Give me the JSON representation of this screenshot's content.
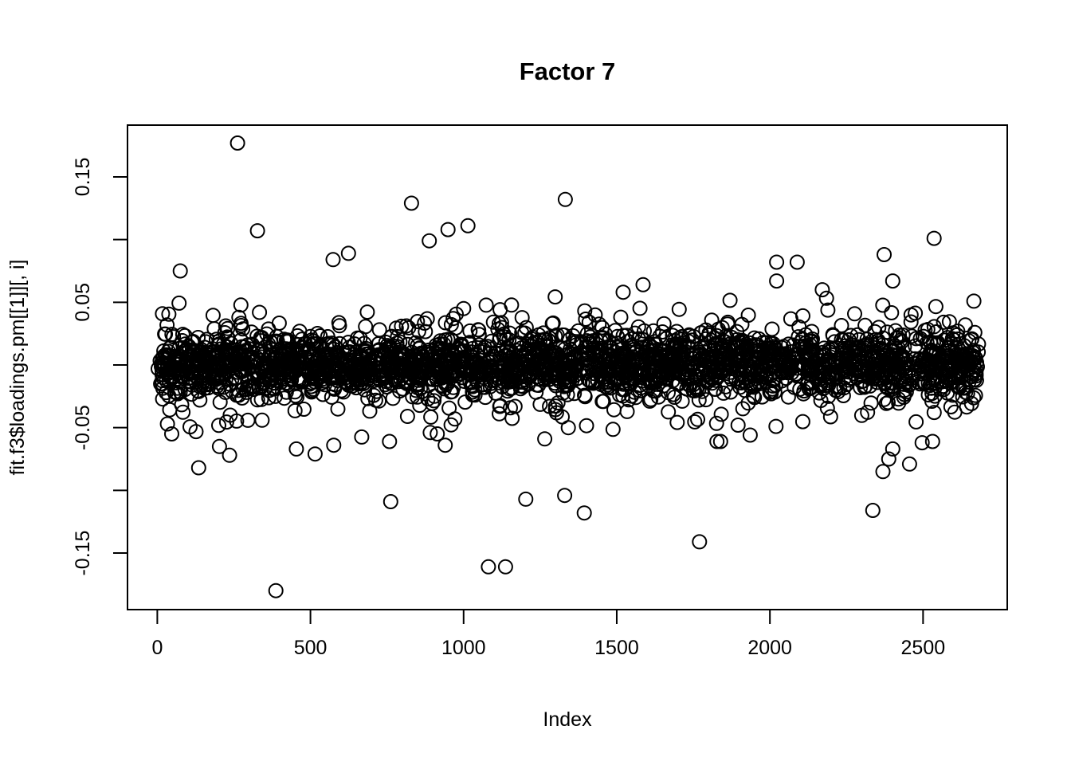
{
  "chart_data": {
    "type": "scatter",
    "title": "Factor 7",
    "xlabel": "Index",
    "ylabel": "fit.f3$loadings.pm[[1]][, i]",
    "n_points": 2681,
    "xlim": [
      0,
      2681
    ],
    "ylim": [
      -0.195,
      0.191
    ],
    "x_ticks": [
      0,
      500,
      1000,
      1500,
      2000,
      2500
    ],
    "y_ticks_labeled": [
      0.15,
      0.05,
      -0.05,
      -0.15
    ],
    "y_tick_labels": [
      "0.15",
      "0.05",
      "-0.05",
      "-0.15"
    ],
    "y_ticks_minor": [
      0.1,
      0.0,
      -0.1
    ],
    "grid": false,
    "legend": "none",
    "marker": {
      "shape": "open-circle",
      "radius_px": 8.5,
      "stroke_px": 2,
      "color": "#000000"
    },
    "background_color": "#ffffff",
    "band": {
      "description": "dense horizontal band of points centered on y=0",
      "n": 2631,
      "x_range": [
        1,
        2681
      ],
      "mixture": [
        {
          "weight": 0.76,
          "sd": 0.012
        },
        {
          "weight": 0.2,
          "sd": 0.021
        },
        {
          "weight": 0.04,
          "sd": 0.032
        }
      ],
      "clip": 0.062,
      "seed": 42
    },
    "outliers": [
      [
        262,
        0.177
      ],
      [
        327,
        0.107
      ],
      [
        830,
        0.129
      ],
      [
        1332,
        0.132
      ],
      [
        888,
        0.099
      ],
      [
        949,
        0.108
      ],
      [
        1014,
        0.111
      ],
      [
        2536,
        0.101
      ],
      [
        2373,
        0.088
      ],
      [
        2022,
        0.082
      ],
      [
        2089,
        0.082
      ],
      [
        75,
        0.075
      ],
      [
        574,
        0.084
      ],
      [
        624,
        0.089
      ],
      [
        1521,
        0.058
      ],
      [
        1586,
        0.064
      ],
      [
        2022,
        0.067
      ],
      [
        2401,
        0.067
      ],
      [
        2171,
        0.06
      ],
      [
        387,
        -0.18
      ],
      [
        1081,
        -0.161
      ],
      [
        1137,
        -0.161
      ],
      [
        1770,
        -0.141
      ],
      [
        1394,
        -0.118
      ],
      [
        2336,
        -0.116
      ],
      [
        762,
        -0.109
      ],
      [
        1203,
        -0.107
      ],
      [
        1330,
        -0.104
      ],
      [
        135,
        -0.082
      ],
      [
        2369,
        -0.085
      ],
      [
        2456,
        -0.079
      ],
      [
        2388,
        -0.075
      ],
      [
        236,
        -0.072
      ],
      [
        515,
        -0.071
      ],
      [
        454,
        -0.067
      ],
      [
        2401,
        -0.067
      ],
      [
        940,
        -0.064
      ],
      [
        576,
        -0.064
      ],
      [
        1827,
        -0.061
      ],
      [
        1839,
        -0.061
      ],
      [
        758,
        -0.061
      ],
      [
        2497,
        -0.062
      ],
      [
        2531,
        -0.061
      ],
      [
        1265,
        -0.059
      ],
      [
        914,
        -0.055
      ],
      [
        203,
        -0.065
      ],
      [
        47,
        -0.055
      ],
      [
        1342,
        -0.05
      ],
      [
        1896,
        -0.048
      ],
      [
        2020,
        -0.049
      ]
    ]
  }
}
